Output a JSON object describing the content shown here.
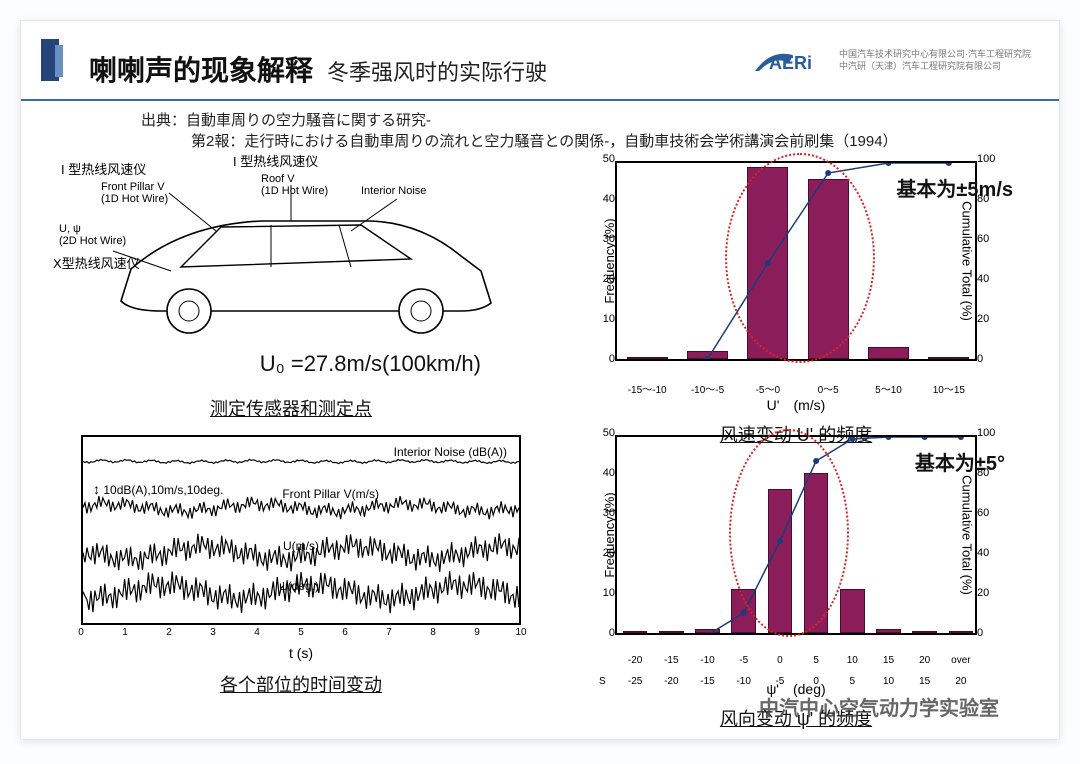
{
  "header": {
    "title_main": "喇喇声的现象解释",
    "title_sub": "冬季强风时的实际行驶",
    "logo_text": "AERI",
    "logo_line1": "中国汽车技术研究中心有限公司·汽车工程研究院",
    "logo_line2": "中汽研（天津）汽车工程研究院有限公司"
  },
  "source": {
    "line1": "出典：自動車周りの空力騒音に関する研究‐",
    "line2": "第2報：走行時における自動車周りの流れと空力騒音との関係‐，自動車技術会学術講演会前刷集（1994）"
  },
  "car_diagram": {
    "labels": {
      "top_left_cn": "I 型热线风速仪",
      "top_right_cn": "I 型热线风速仪",
      "front_pillar": "Front Pillar V\n(1D Hot Wire)",
      "roof": "Roof V\n(1D Hot Wire)",
      "interior": "Interior Noise",
      "u_psi": "U, ψ\n(2D Hot Wire)",
      "x_type": "X型热线风速仪"
    },
    "formula": "U₀ =27.8m/s(100km/h)",
    "caption": "测定传感器和测定点"
  },
  "top_chart": {
    "type": "bar_with_cumulative",
    "categories": [
      "-15～-10",
      "-10～-5",
      "-5～0",
      "0～5",
      "5～10",
      "10～15"
    ],
    "values": [
      0,
      2,
      48,
      45,
      3,
      0
    ],
    "bar_color": "#8b1d5b",
    "cumulative": [
      0,
      2,
      50,
      95,
      100,
      100
    ],
    "ylim": [
      0,
      50
    ],
    "ytick_step": 10,
    "y2lim": [
      0,
      100
    ],
    "y2tick_step": 20,
    "xlabel": "U'　(m/s)",
    "ylabel": "Frequency (%)",
    "y2label": "Cumulative Total (%)",
    "annotation": "基本为±5m/s",
    "ellipse_color": "#d22",
    "caption": "风速变动 U' 的频度"
  },
  "time_plot": {
    "traces": [
      {
        "label": "Interior Noise (dB(A))",
        "y": 25
      },
      {
        "label": "Front Pillar V(m/s)",
        "y": 72
      },
      {
        "label": "U(m/s)",
        "y": 118
      },
      {
        "label": "ψ(deg.)",
        "y": 158
      }
    ],
    "scale_label": "10dB(A),10m/s,10deg.",
    "x_ticks": [
      0,
      1,
      2,
      3,
      4,
      5,
      6,
      7,
      8,
      9,
      10
    ],
    "xlabel": "t (s)",
    "caption": "各个部位的时间变动"
  },
  "bottom_chart": {
    "type": "bar_with_cumulative",
    "categories": [
      "-20",
      "-15",
      "-10",
      "-5",
      "0",
      "5",
      "10",
      "15",
      "20",
      "over"
    ],
    "category_lower": [
      "-25",
      "-20",
      "-15",
      "-10",
      "-5",
      "0",
      "5",
      "10",
      "15",
      "20"
    ],
    "values": [
      0,
      0,
      1,
      11,
      36,
      40,
      11,
      1,
      0,
      0
    ],
    "bar_color": "#8b1d5b",
    "cumulative": [
      0,
      0,
      1,
      12,
      48,
      88,
      99,
      100,
      100,
      100
    ],
    "ylim": [
      0,
      50
    ],
    "ytick_step": 10,
    "y2lim": [
      0,
      100
    ],
    "y2tick_step": 20,
    "xlabel": "ψ'　(deg)",
    "ylabel": "Frequency (%)",
    "y2label": "Cumulative Total (%)",
    "annotation": "基本为±5°",
    "ellipse_color": "#d22",
    "caption": "风向变动 ψ' 的频度"
  },
  "footer": {
    "watermark": "中汽中心空气动力学实验室"
  },
  "colors": {
    "accent": "#27447a",
    "line": "#1a3c7a",
    "ellipse": "#d22"
  }
}
